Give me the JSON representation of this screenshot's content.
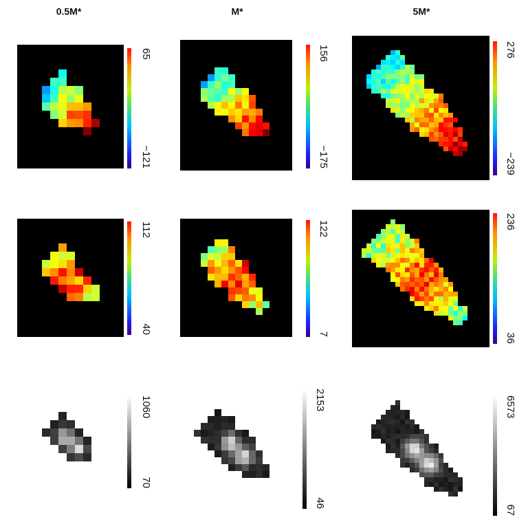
{
  "columns": [
    "0.5M*",
    "M*",
    "5M*"
  ],
  "rows": [
    [
      {
        "max": "65",
        "min": "−121"
      },
      {
        "max": "156",
        "min": "−175"
      },
      {
        "max": "276",
        "min": "−239"
      }
    ],
    [
      {
        "max": "112",
        "min": "40"
      },
      {
        "max": "122",
        "min": "7"
      },
      {
        "max": "236",
        "min": "36"
      }
    ],
    [
      {
        "max": "1060",
        "min": "70"
      },
      {
        "max": "2153",
        "min": "46"
      },
      {
        "max": "6573",
        "min": "67"
      }
    ]
  ]
}
